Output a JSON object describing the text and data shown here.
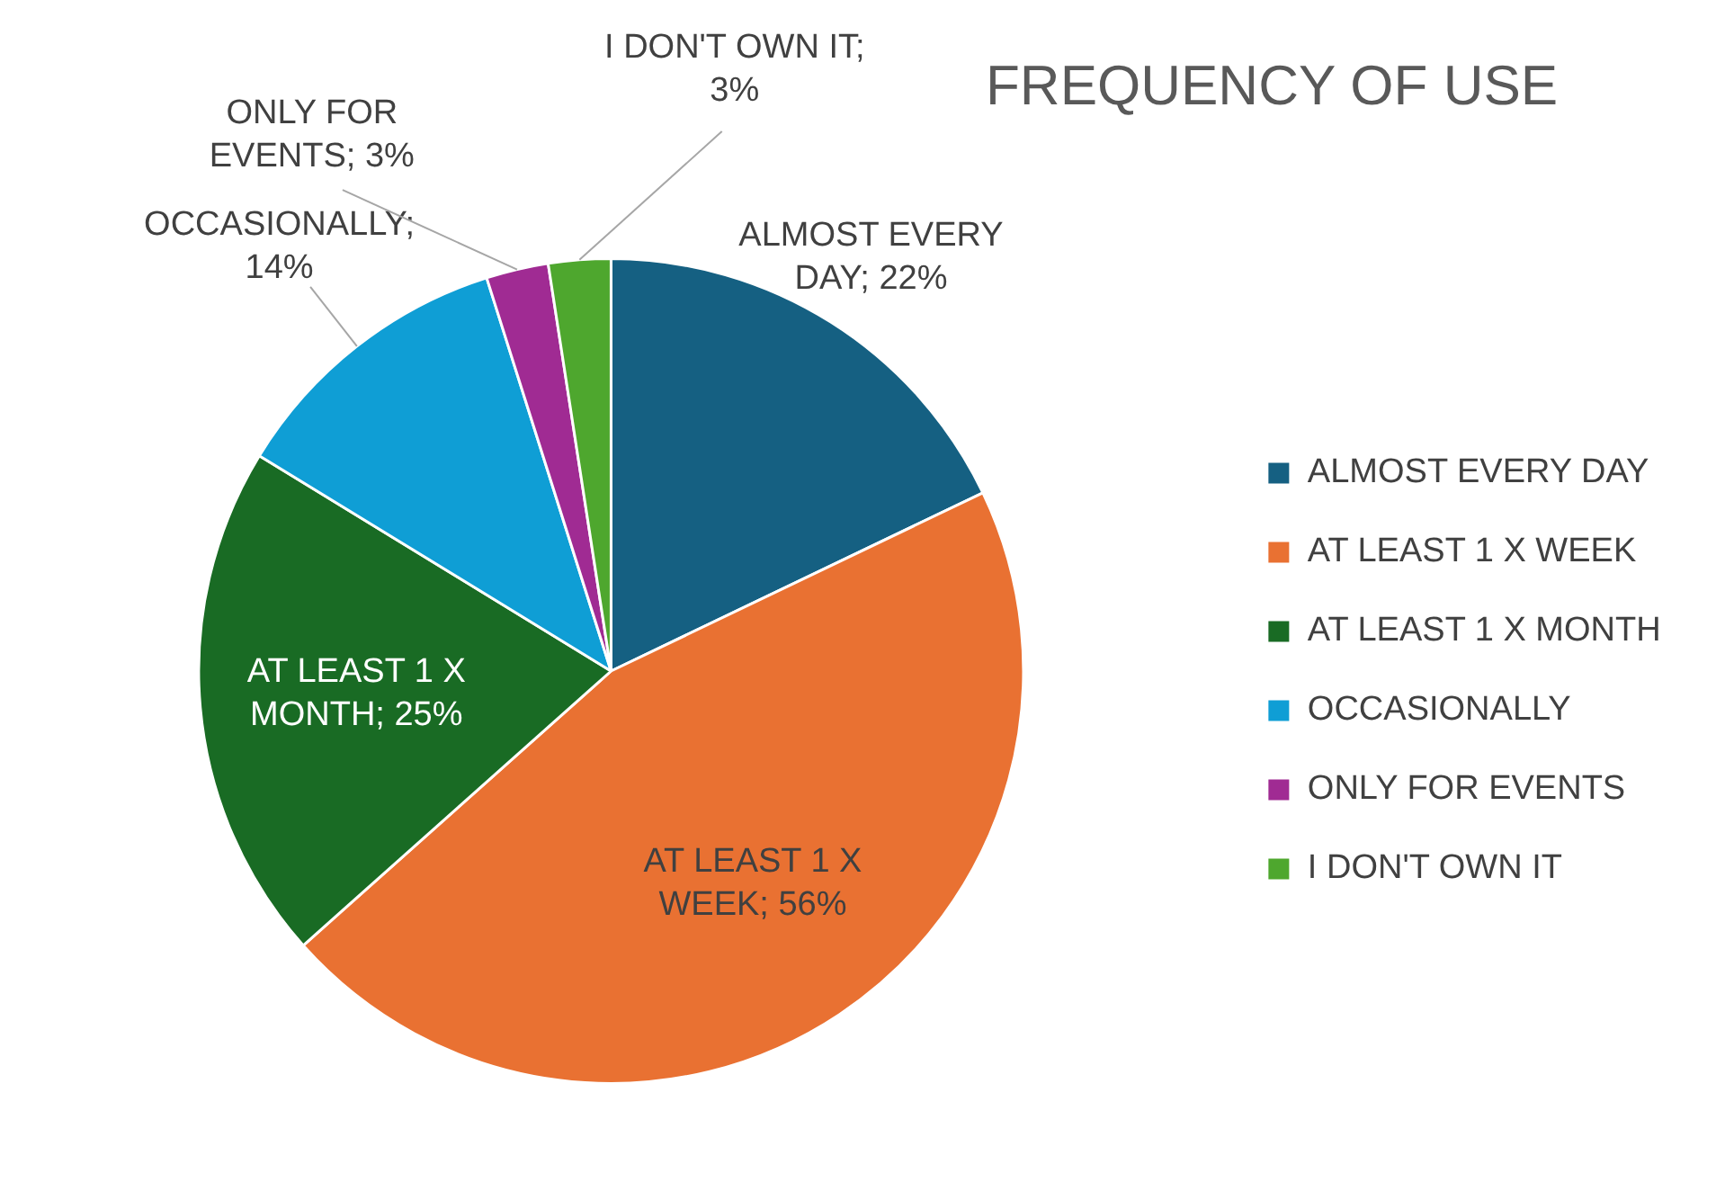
{
  "chart_data": {
    "type": "pie",
    "title": "FREQUENCY OF USE",
    "categories": [
      "ALMOST EVERY DAY",
      "AT LEAST 1 X WEEK",
      "AT LEAST 1 X MONTH",
      "OCCASIONALLY",
      "ONLY FOR EVENTS",
      "I DON'T OWN IT"
    ],
    "values": [
      22,
      56,
      25,
      14,
      3,
      3
    ],
    "value_labels": [
      "ALMOST EVERY DAY; 22%",
      "AT LEAST 1 X WEEK; 56%",
      "AT LEAST 1 X MONTH; 25%",
      "OCCASIONALLY; 14%",
      "ONLY FOR EVENTS; 3%",
      "I DON'T OWN IT; 3%"
    ],
    "colors": [
      "#156082",
      "#e97132",
      "#196b24",
      "#0f9ed5",
      "#a02b93",
      "#4ea72e"
    ],
    "legend": "right"
  }
}
